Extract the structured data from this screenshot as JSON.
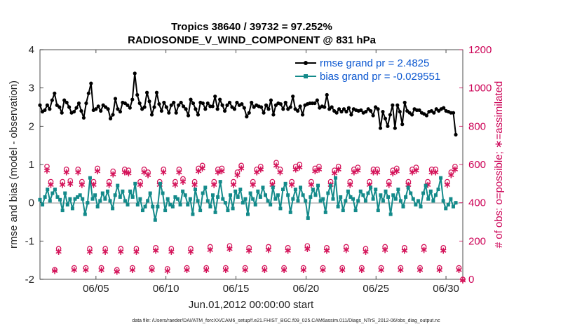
{
  "chart_data": {
    "type": "line",
    "title_line1": "Tropics 38640 / 39732 = 97.252%",
    "title_line2": "RADIOSONDE_V_WIND_COMPONENT @ 831 hPa",
    "xlabel": "Jun.01,2012 00:00:00 start",
    "ylabel_left": "rmse and bias (model - observation)",
    "ylabel_right": "# of obs: o=possible; ∗=assimilated",
    "footer": "data file: /Users/raeder/DAI/ATM_forcXX/CAM6_setup/f.e21.FHIST_BGC.f09_025.CAM6assim.011/Diags_NTrS_2012-06/obs_diag_output.nc",
    "xlim": [
      1,
      31.2
    ],
    "ylim_left": [
      -2,
      4
    ],
    "ylim_right": [
      0,
      1200
    ],
    "xticks": [
      5,
      10,
      15,
      20,
      25,
      30
    ],
    "xtick_labels": [
      "06/05",
      "06/10",
      "06/15",
      "06/20",
      "06/25",
      "06/30"
    ],
    "yticks_left": [
      -2,
      -1,
      0,
      1,
      2,
      3,
      4
    ],
    "yticks_right": [
      0,
      200,
      400,
      600,
      800,
      1000,
      1200
    ],
    "colors": {
      "rmse": "#000000",
      "bias": "#138a8a",
      "obs": "#d4145a",
      "zero_line": "#aaaaaa"
    },
    "legend": [
      {
        "name": "rmse grand pr = 2.4825",
        "color": "#000000"
      },
      {
        "name": "bias grand pr = -0.029551",
        "color": "#138a8a"
      }
    ],
    "series": [
      {
        "name": "rmse",
        "axis": "left",
        "values": [
          2.55,
          2.38,
          2.42,
          2.55,
          2.45,
          2.68,
          2.86,
          2.55,
          2.5,
          2.35,
          2.68,
          2.62,
          2.5,
          2.35,
          2.38,
          2.48,
          2.6,
          2.4,
          2.22,
          2.6,
          2.86,
          3.12,
          2.42,
          2.45,
          2.52,
          2.4,
          2.55,
          2.5,
          2.45,
          2.2,
          2.3,
          2.72,
          2.45,
          2.38,
          2.62,
          2.6,
          2.55,
          2.48,
          2.7,
          3.38,
          2.82,
          2.6,
          2.45,
          2.5,
          2.88,
          2.65,
          2.3,
          2.5,
          2.88,
          2.58,
          2.4,
          2.62,
          2.5,
          2.35,
          2.55,
          2.62,
          2.35,
          2.55,
          2.62,
          2.52,
          2.45,
          2.28,
          2.7,
          2.6,
          2.45,
          2.3,
          2.62,
          2.6,
          2.45,
          2.6,
          2.52,
          2.52,
          2.78,
          2.45,
          2.7,
          2.55,
          2.4,
          2.55,
          2.62,
          2.5,
          2.45,
          2.62,
          2.55,
          2.58,
          2.48,
          2.25,
          2.35,
          2.62,
          2.5,
          2.55,
          2.52,
          2.5,
          2.35,
          2.55,
          2.45,
          2.68,
          2.3,
          2.55,
          2.6,
          2.58,
          2.45,
          2.62,
          2.45,
          2.5,
          2.78,
          2.45,
          2.4,
          2.52,
          2.3,
          2.55,
          2.58,
          2.6,
          2.6,
          2.6,
          2.68,
          2.48,
          2.52,
          2.5,
          2.82,
          2.45,
          2.5,
          2.4,
          2.35,
          2.45,
          2.38,
          2.45,
          2.38,
          2.48,
          2.3,
          2.45,
          2.42,
          2.4,
          2.42,
          2.35,
          2.38,
          2.45,
          2.4,
          2.28,
          2.5,
          2.45,
          1.95,
          2.38,
          2.2,
          2.0,
          2.3,
          2.55,
          1.95,
          2.55,
          2.38,
          2.05,
          2.62,
          2.4,
          2.35,
          2.3,
          2.45,
          2.42,
          2.42,
          2.35,
          2.32,
          2.28,
          2.38,
          2.4,
          2.35,
          2.45,
          2.4,
          2.45,
          2.48,
          2.4,
          2.38,
          2.35,
          2.35,
          1.78
        ]
      },
      {
        "name": "bias",
        "axis": "left",
        "values": [
          0.08,
          -0.05,
          0.15,
          0.35,
          0.05,
          0.25,
          0.35,
          0.15,
          0.08,
          -0.2,
          0.25,
          -0.05,
          0.1,
          -0.15,
          0.1,
          0.15,
          0.2,
          0.1,
          -0.3,
          0.0,
          0.65,
          0.1,
          0.2,
          -0.1,
          0.05,
          0.25,
          0.1,
          0.3,
          0.05,
          -0.15,
          0.2,
          0.45,
          0.15,
          0.3,
          0.05,
          -0.05,
          0.3,
          0.15,
          0.5,
          -0.05,
          0.1,
          -0.2,
          -0.1,
          0.05,
          0.25,
          -0.1,
          -0.45,
          -0.1,
          0.5,
          0.25,
          -0.2,
          0.1,
          -0.05,
          -0.1,
          0.15,
          0.1,
          -0.05,
          0.3,
          0.2,
          -0.05,
          0.1,
          -0.3,
          0.35,
          0.05,
          -0.2,
          0.25,
          0.4,
          0.05,
          -0.1,
          0.2,
          -0.25,
          0.15,
          0.55,
          0.1,
          0.0,
          -0.2,
          0.2,
          -0.15,
          0.3,
          0.15,
          0.35,
          0.0,
          0.1,
          -0.3,
          0.25,
          0.1,
          -0.05,
          0.3,
          0.15,
          0.4,
          0.2,
          0.05,
          -0.05,
          0.4,
          0.1,
          0.2,
          -0.15,
          0.35,
          0.5,
          0.2,
          -0.25,
          0.1,
          0.35,
          0.05,
          0.4,
          0.2,
          0.05,
          -0.4,
          0.15,
          0.35,
          0.2,
          0.45,
          0.05,
          0.1,
          -0.25,
          0.25,
          0.45,
          0.1,
          0.65,
          -0.1,
          0.15,
          -0.2,
          0.05,
          0.3,
          0.15,
          0.1,
          -0.2,
          0.05,
          0.3,
          0.2,
          0.05,
          0.25,
          0.4,
          0.1,
          0.35,
          -0.2,
          0.2,
          0.05,
          0.3,
          0.15,
          -0.3,
          0.2,
          0.1,
          0.35,
          0.05,
          -0.1,
          0.15,
          0.4,
          0.25,
          0.1,
          -0.05,
          0.05,
          -0.1,
          0.25,
          0.45,
          0.1,
          0.3,
          0.05,
          0.2,
          0.35,
          0.65,
          0.05,
          -0.15,
          -0.05,
          0.1,
          -0.1,
          0.0
        ]
      },
      {
        "name": "obs possible",
        "axis": "right",
        "values": [
          590,
          510,
          50,
          160,
          510,
          575,
          515,
          60,
          575,
          510,
          60,
          160,
          510,
          580,
          60,
          160,
          510,
          565,
          50,
          160,
          575,
          570,
          60,
          160,
          510,
          575,
          560,
          60,
          165,
          510,
          575,
          55,
          160,
          510,
          575,
          525,
          60,
          160,
          510,
          580,
          595,
          60,
          170,
          510,
          575,
          580,
          60,
          175,
          510,
          560,
          595,
          60,
          165,
          510,
          575,
          590,
          60,
          170,
          510,
          610,
          575,
          60,
          165,
          510,
          590,
          600,
          60,
          175,
          510,
          580,
          590,
          60,
          165,
          510,
          570,
          590,
          60,
          170,
          510,
          575,
          585,
          60,
          160,
          510,
          575,
          575,
          60,
          170,
          510,
          570,
          580,
          60,
          165,
          510,
          575,
          585,
          60,
          170,
          510,
          575,
          575,
          60,
          165,
          510,
          560,
          590,
          60,
          0
        ]
      },
      {
        "name": "obs assimilated",
        "axis": "right",
        "values": [
          575,
          500,
          50,
          150,
          500,
          565,
          505,
          55,
          565,
          500,
          55,
          150,
          500,
          570,
          55,
          150,
          500,
          555,
          45,
          150,
          565,
          560,
          55,
          150,
          500,
          565,
          550,
          55,
          155,
          500,
          565,
          50,
          150,
          500,
          565,
          515,
          55,
          150,
          500,
          570,
          585,
          55,
          160,
          500,
          565,
          570,
          55,
          165,
          500,
          550,
          585,
          55,
          155,
          500,
          565,
          580,
          55,
          160,
          500,
          600,
          565,
          55,
          155,
          500,
          580,
          590,
          55,
          165,
          500,
          570,
          580,
          55,
          155,
          500,
          560,
          580,
          55,
          160,
          500,
          565,
          575,
          55,
          150,
          500,
          565,
          565,
          55,
          160,
          500,
          560,
          570,
          55,
          155,
          500,
          565,
          575,
          55,
          160,
          500,
          565,
          565,
          55,
          155,
          500,
          550,
          580,
          55,
          0
        ]
      }
    ]
  }
}
